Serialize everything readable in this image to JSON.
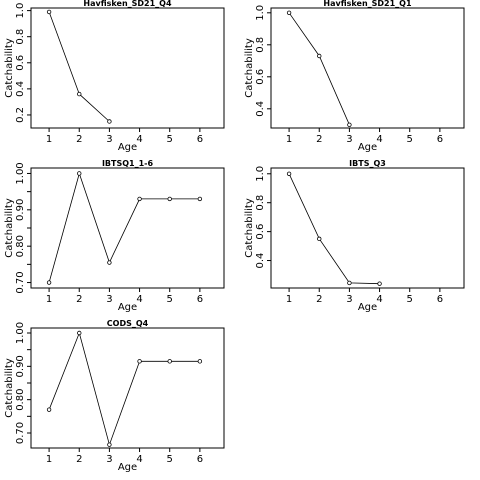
{
  "chart_data": [
    {
      "type": "line",
      "title": "Havfisken_SD21_Q4",
      "xlabel": "Age",
      "ylabel": "Catchability",
      "x": [
        1,
        2,
        3
      ],
      "values": [
        0.99,
        0.36,
        0.15
      ],
      "xlim": [
        0.4,
        6.8
      ],
      "ylim": [
        0.1,
        1.02
      ],
      "xticks": [
        1,
        2,
        3,
        4,
        5,
        6
      ],
      "yticks": [
        0.2,
        0.4,
        0.6,
        0.8,
        1.0
      ],
      "yticklabels": [
        "0.2",
        "0.4",
        "0.6",
        "0.8",
        "1.0"
      ]
    },
    {
      "type": "line",
      "title": "Havfisken_SD21_Q1",
      "xlabel": "Age",
      "ylabel": "Catchability",
      "x": [
        1,
        2,
        3
      ],
      "values": [
        1.0,
        0.73,
        0.3
      ],
      "xlim": [
        0.4,
        6.8
      ],
      "ylim": [
        0.28,
        1.03
      ],
      "xticks": [
        1,
        2,
        3,
        4,
        5,
        6
      ],
      "yticks": [
        0.4,
        0.6,
        0.8,
        1.0
      ],
      "yticklabels": [
        "0.4",
        "0.6",
        "0.8",
        "1.0"
      ]
    },
    {
      "type": "line",
      "title": "IBTSQ1_1-6",
      "xlabel": "Age",
      "ylabel": "Catchability",
      "x": [
        1,
        2,
        3,
        4,
        5,
        6
      ],
      "values": [
        0.7,
        1.0,
        0.755,
        0.93,
        0.93,
        0.93
      ],
      "xlim": [
        0.4,
        6.8
      ],
      "ylim": [
        0.685,
        1.015
      ],
      "xticks": [
        1,
        2,
        3,
        4,
        5,
        6
      ],
      "yticks": [
        0.7,
        0.75,
        0.8,
        0.85,
        0.9,
        0.95,
        1.0
      ],
      "yticklabels": [
        "0.70",
        "",
        "0.80",
        "",
        "0.90",
        "",
        "1.00"
      ]
    },
    {
      "type": "line",
      "title": "IBTS_Q3",
      "xlabel": "Age",
      "ylabel": "Catchability",
      "x": [
        1,
        2,
        3,
        4
      ],
      "values": [
        1.0,
        0.55,
        0.245,
        0.24
      ],
      "xlim": [
        0.4,
        6.8
      ],
      "ylim": [
        0.21,
        1.04
      ],
      "xticks": [
        1,
        2,
        3,
        4,
        5,
        6
      ],
      "yticks": [
        0.4,
        0.6,
        0.8,
        1.0
      ],
      "yticklabels": [
        "0.4",
        "0.6",
        "0.8",
        "1.0"
      ]
    },
    {
      "type": "line",
      "title": "CODS_Q4",
      "xlabel": "Age",
      "ylabel": "Catchability",
      "x": [
        1,
        2,
        3,
        4,
        5,
        6
      ],
      "values": [
        0.77,
        1.0,
        0.665,
        0.915,
        0.915,
        0.915
      ],
      "xlim": [
        0.4,
        6.8
      ],
      "ylim": [
        0.655,
        1.015
      ],
      "xticks": [
        1,
        2,
        3,
        4,
        5,
        6
      ],
      "yticks": [
        0.7,
        0.75,
        0.8,
        0.85,
        0.9,
        0.95,
        1.0
      ],
      "yticklabels": [
        "0.70",
        "",
        "0.80",
        "",
        "0.90",
        "",
        "1.00"
      ]
    }
  ]
}
